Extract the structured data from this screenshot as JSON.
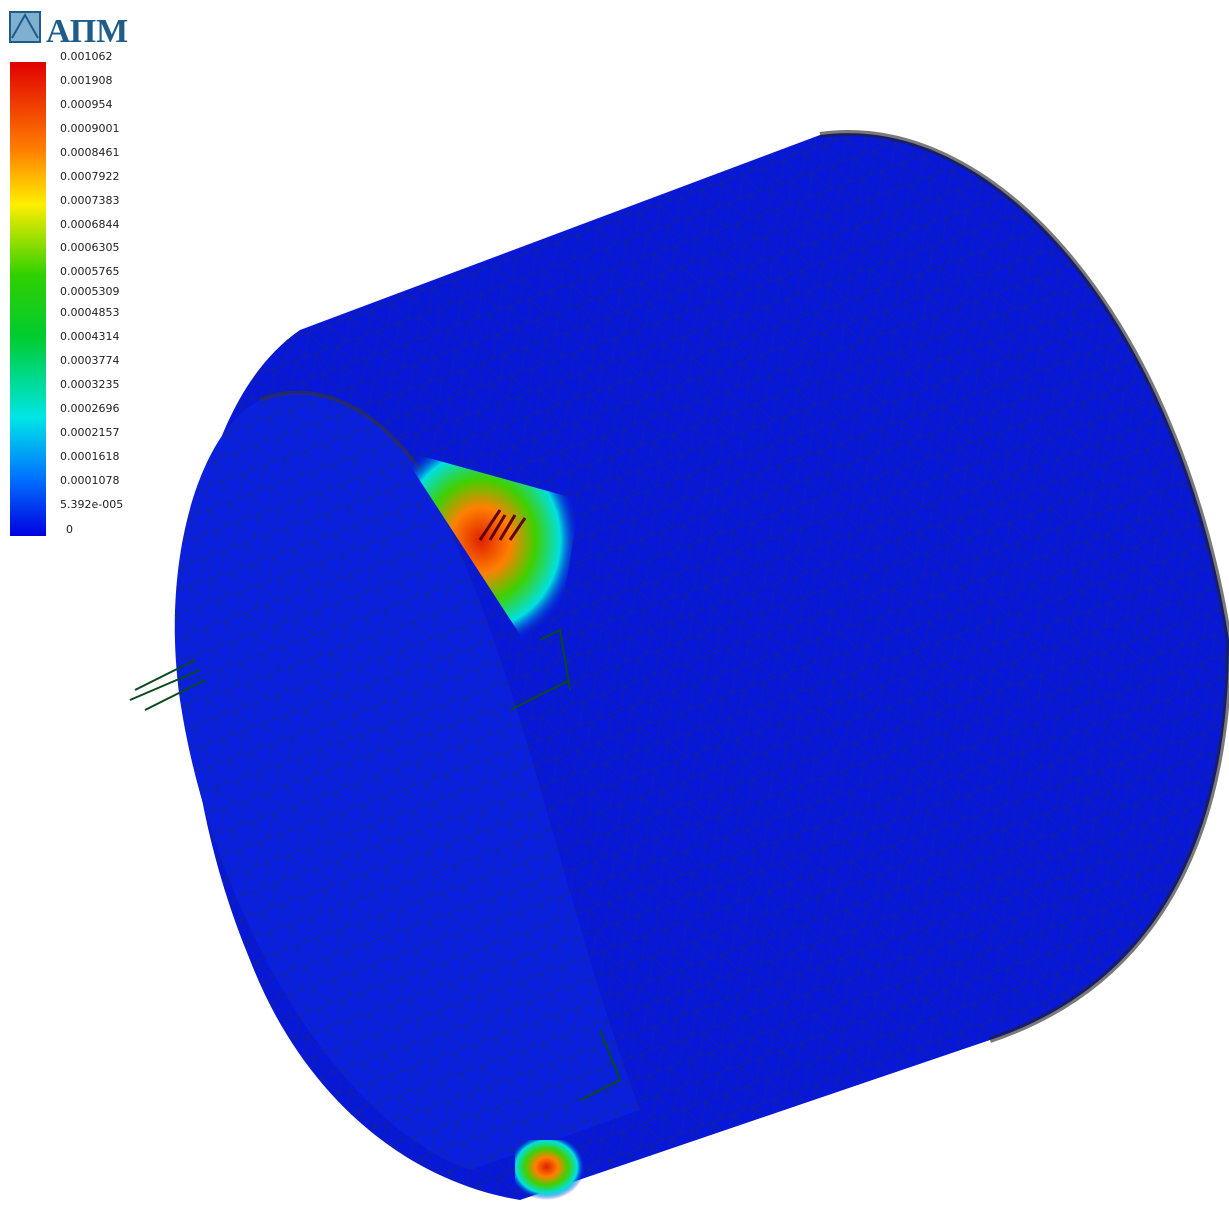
{
  "logo": {
    "text": "АПМ"
  },
  "legend": {
    "labels": [
      "0.001062",
      "0.001908",
      "0.000954",
      "0.0009001",
      "0.0008461",
      "0.0007922",
      "0.0007383",
      "0.0006844",
      "0.0006305",
      "0.0005765",
      "0.0005309",
      "0.0004853",
      "0.0004314",
      "0.0003774",
      "0.0003235",
      "0.0002696",
      "0.0002157",
      "0.0001618",
      "0.0001078",
      "5.392e-005",
      "0"
    ]
  }
}
